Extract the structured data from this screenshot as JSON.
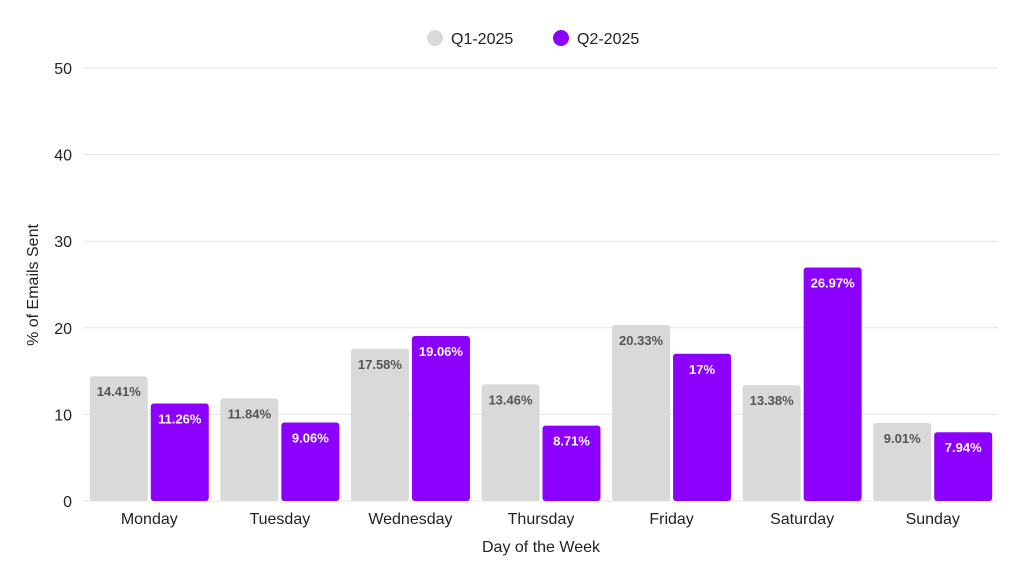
{
  "chart_data": {
    "type": "bar",
    "categories": [
      "Monday",
      "Tuesday",
      "Wednesday",
      "Thursday",
      "Friday",
      "Saturday",
      "Sunday"
    ],
    "series": [
      {
        "name": "Q1-2025",
        "color": "#d9d9d9",
        "label_color": "#555555",
        "values": [
          14.41,
          11.84,
          17.58,
          13.46,
          20.33,
          13.38,
          9.01
        ],
        "labels": [
          "14.41%",
          "11.84%",
          "17.58%",
          "13.46%",
          "20.33%",
          "13.38%",
          "9.01%"
        ]
      },
      {
        "name": "Q2-2025",
        "color": "#8b00ff",
        "label_color": "#ffffff",
        "values": [
          11.26,
          9.06,
          19.06,
          8.71,
          17,
          26.97,
          7.94
        ],
        "labels": [
          "11.26%",
          "9.06%",
          "19.06%",
          "8.71%",
          "17%",
          "26.97%",
          "7.94%"
        ]
      }
    ],
    "xlabel": "Day of the Week",
    "ylabel": "% of Emails Sent",
    "ylim": [
      0,
      50
    ],
    "yticks": [
      "0",
      "10",
      "20",
      "30",
      "40",
      "50"
    ],
    "grid": true,
    "legend_position": "top-center"
  }
}
